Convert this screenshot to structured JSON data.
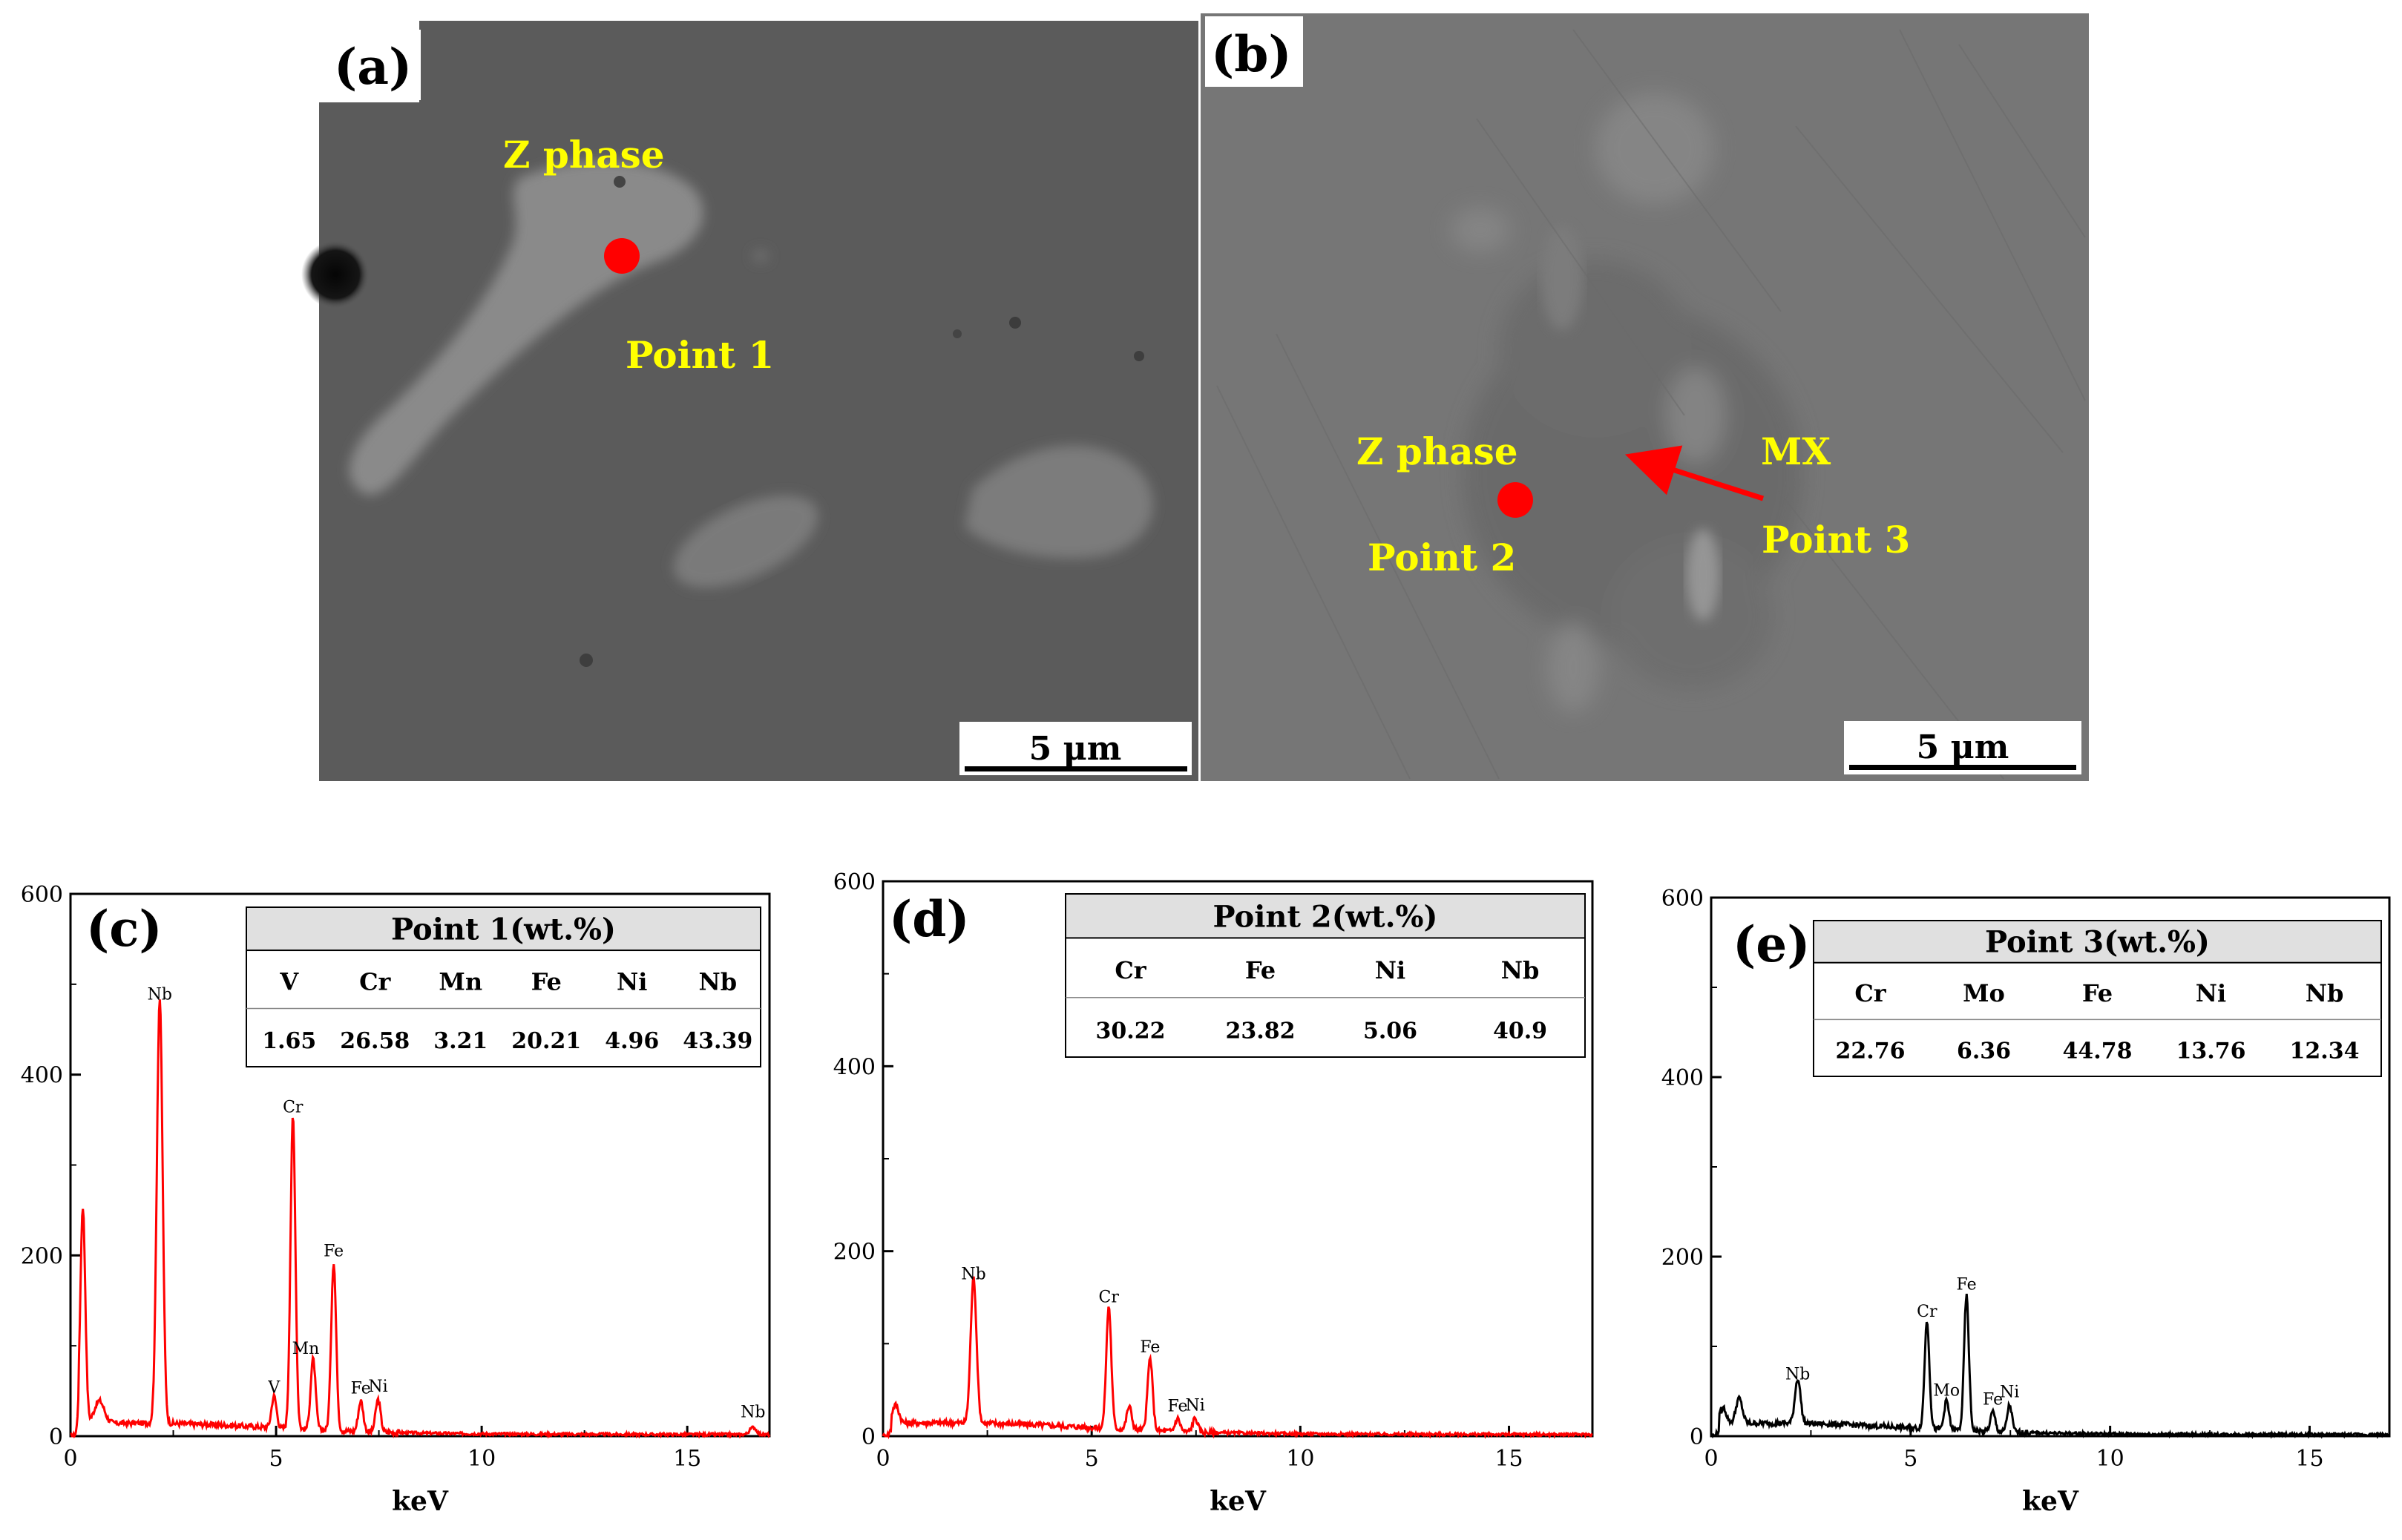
{
  "sem_panels": [
    {
      "letter": "(a)",
      "scale_bar": "5 μm",
      "annotations": [
        "Z phase",
        "Point 1"
      ]
    },
    {
      "letter": "(b)",
      "scale_bar": "5 μm",
      "annotations": [
        "Z phase",
        "Point 2",
        "MX",
        "Point 3"
      ]
    }
  ],
  "colors": {
    "spectrum_red": "#ff0000",
    "spectrum_black": "#000000",
    "annotation": "#ffff00",
    "marker": "#ff0000",
    "table_header_bg": "#e0e0e0"
  },
  "chart_data": [
    {
      "type": "line",
      "letter": "(c)",
      "xlabel": "keV",
      "ylabel": "",
      "xlim": [
        0,
        17
      ],
      "ylim": [
        0,
        600
      ],
      "xticks": [
        "0",
        "5",
        "10",
        "15"
      ],
      "yticks": [
        "0",
        "200",
        "400",
        "600"
      ],
      "color": "#ff0000",
      "peaks": [
        {
          "x": 0.3,
          "y": 240,
          "w": 0.06
        },
        {
          "x": 0.7,
          "y": 25,
          "w": 0.12
        },
        {
          "x": 2.17,
          "y": 470,
          "w": 0.07,
          "label": "Nb"
        },
        {
          "x": 4.95,
          "y": 35,
          "w": 0.06,
          "label": "V"
        },
        {
          "x": 5.41,
          "y": 345,
          "w": 0.06,
          "label": "Cr"
        },
        {
          "x": 5.9,
          "y": 78,
          "w": 0.06,
          "label": "Mn"
        },
        {
          "x": 6.4,
          "y": 186,
          "w": 0.06,
          "label": "Fe"
        },
        {
          "x": 7.06,
          "y": 34,
          "w": 0.06,
          "label": "Fe"
        },
        {
          "x": 7.48,
          "y": 36,
          "w": 0.06,
          "label": "Ni"
        },
        {
          "x": 16.6,
          "y": 8,
          "w": 0.08,
          "label": "Nb"
        }
      ],
      "table": {
        "title": "Point 1(wt.%)",
        "headers": [
          "V",
          "Cr",
          "Mn",
          "Fe",
          "Ni",
          "Nb"
        ],
        "values": [
          "1.65",
          "26.58",
          "3.21",
          "20.21",
          "4.96",
          "43.39"
        ]
      }
    },
    {
      "type": "line",
      "letter": "(d)",
      "xlabel": "keV",
      "ylabel": "",
      "xlim": [
        0,
        17
      ],
      "ylim": [
        0,
        600
      ],
      "xticks": [
        "0",
        "5",
        "10",
        "15"
      ],
      "yticks": [
        "0",
        "200",
        "400",
        "600"
      ],
      "color": "#ff0000",
      "peaks": [
        {
          "x": 0.3,
          "y": 20,
          "w": 0.08
        },
        {
          "x": 2.17,
          "y": 157,
          "w": 0.07,
          "label": "Nb"
        },
        {
          "x": 5.41,
          "y": 132,
          "w": 0.06,
          "label": "Cr"
        },
        {
          "x": 5.9,
          "y": 25,
          "w": 0.06
        },
        {
          "x": 6.4,
          "y": 78,
          "w": 0.06,
          "label": "Fe"
        },
        {
          "x": 7.06,
          "y": 14,
          "w": 0.06,
          "label": "Fe"
        },
        {
          "x": 7.48,
          "y": 15,
          "w": 0.06,
          "label": "Ni"
        }
      ],
      "table": {
        "title": "Point 2(wt.%)",
        "headers": [
          "Cr",
          "Fe",
          "Ni",
          "Nb"
        ],
        "values": [
          "30.22",
          "23.82",
          "5.06",
          "40.9"
        ]
      }
    },
    {
      "type": "line",
      "letter": "(e)",
      "xlabel": "keV",
      "ylabel": "",
      "xlim": [
        0,
        17
      ],
      "ylim": [
        0,
        600
      ],
      "xticks": [
        "0",
        "5",
        "10",
        "15"
      ],
      "yticks": [
        "0",
        "200",
        "400",
        "600"
      ],
      "color": "#000000",
      "peaks": [
        {
          "x": 0.3,
          "y": 18,
          "w": 0.08
        },
        {
          "x": 0.7,
          "y": 28,
          "w": 0.08
        },
        {
          "x": 2.17,
          "y": 50,
          "w": 0.07,
          "label": "Nb"
        },
        {
          "x": 5.41,
          "y": 120,
          "w": 0.06,
          "label": "Cr"
        },
        {
          "x": 5.9,
          "y": 32,
          "w": 0.06,
          "label": "Mo"
        },
        {
          "x": 6.4,
          "y": 150,
          "w": 0.06,
          "label": "Fe"
        },
        {
          "x": 7.06,
          "y": 22,
          "w": 0.06,
          "label": "Fe"
        },
        {
          "x": 7.48,
          "y": 30,
          "w": 0.06,
          "label": "Ni"
        }
      ],
      "table": {
        "title": "Point 3(wt.%)",
        "headers": [
          "Cr",
          "Mo",
          "Fe",
          "Ni",
          "Nb"
        ],
        "values": [
          "22.76",
          "6.36",
          "44.78",
          "13.76",
          "12.34"
        ]
      }
    }
  ]
}
